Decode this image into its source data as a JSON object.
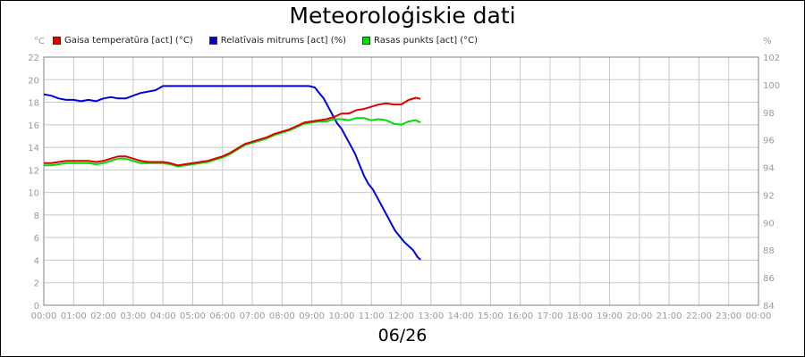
{
  "title": "Meteoroloģiskie dati",
  "date_label": "06/26",
  "units": {
    "left": "°C",
    "right": "%"
  },
  "colors": {
    "temperature": "#e00000",
    "humidity": "#0000dd",
    "dewpoint": "#00dd00"
  },
  "chart_data": {
    "type": "line",
    "title": "Meteoroloģiskie dati",
    "xlabel": "06/26",
    "x_ticks": [
      "00:00",
      "01:00",
      "02:00",
      "03:00",
      "04:00",
      "05:00",
      "06:00",
      "07:00",
      "08:00",
      "09:00",
      "10:00",
      "11:00",
      "12:00",
      "13:00",
      "14:00",
      "15:00",
      "16:00",
      "17:00",
      "18:00",
      "19:00",
      "20:00",
      "21:00",
      "22:00",
      "23:00",
      "00:00"
    ],
    "xlim": [
      0,
      24
    ],
    "y_left": {
      "label": "°C",
      "lim": [
        0,
        22
      ],
      "ticks": [
        "0",
        "2",
        "4",
        "6",
        "8",
        "10",
        "12",
        "14",
        "16",
        "18",
        "20",
        "22"
      ]
    },
    "y_right": {
      "label": "%",
      "lim": [
        84,
        102
      ],
      "ticks": [
        "84",
        "86",
        "88",
        "90",
        "92",
        "94",
        "96",
        "98",
        "100",
        "102"
      ]
    },
    "grid": true,
    "legend_position": "top-left",
    "series": [
      {
        "name": "Gaisa temperatūra [act] (°C)",
        "axis": "left",
        "color": "#e00000",
        "x": [
          0,
          0.25,
          0.5,
          0.75,
          1,
          1.25,
          1.5,
          1.75,
          2,
          2.25,
          2.5,
          2.75,
          3,
          3.25,
          3.5,
          3.75,
          4,
          4.25,
          4.5,
          4.75,
          5,
          5.25,
          5.5,
          5.75,
          6,
          6.25,
          6.5,
          6.75,
          7,
          7.25,
          7.5,
          7.75,
          8,
          8.25,
          8.5,
          8.75,
          9,
          9.25,
          9.5,
          9.75,
          10,
          10.25,
          10.5,
          10.75,
          11,
          11.25,
          11.5,
          11.75,
          12,
          12.25,
          12.5,
          12.65
        ],
        "y": [
          12.6,
          12.6,
          12.7,
          12.8,
          12.8,
          12.8,
          12.8,
          12.7,
          12.8,
          13.0,
          13.2,
          13.2,
          13.0,
          12.8,
          12.7,
          12.7,
          12.7,
          12.6,
          12.4,
          12.5,
          12.6,
          12.7,
          12.8,
          13.0,
          13.2,
          13.5,
          13.9,
          14.3,
          14.5,
          14.7,
          14.9,
          15.2,
          15.4,
          15.6,
          15.9,
          16.2,
          16.3,
          16.4,
          16.5,
          16.7,
          17.0,
          17.0,
          17.3,
          17.4,
          17.6,
          17.8,
          17.9,
          17.8,
          17.8,
          18.2,
          18.4,
          18.3
        ]
      },
      {
        "name": "Relatīvais mitrums [act] (%)",
        "axis": "right",
        "color": "#0000dd",
        "x": [
          0,
          0.25,
          0.5,
          0.75,
          1,
          1.25,
          1.5,
          1.75,
          2,
          2.25,
          2.5,
          2.75,
          3,
          3.25,
          3.5,
          3.75,
          4,
          4.5,
          5,
          5.5,
          6,
          6.5,
          7,
          7.5,
          8,
          8.5,
          8.9,
          9.1,
          9.25,
          9.4,
          9.55,
          9.7,
          9.85,
          10,
          10.15,
          10.3,
          10.45,
          10.6,
          10.75,
          10.9,
          11.05,
          11.2,
          11.35,
          11.5,
          11.65,
          11.8,
          11.95,
          12.1,
          12.25,
          12.4,
          12.55,
          12.65
        ],
        "y": [
          99.3,
          99.2,
          99.0,
          98.9,
          98.9,
          98.8,
          98.9,
          98.8,
          99.0,
          99.1,
          99.0,
          99.0,
          99.2,
          99.4,
          99.5,
          99.6,
          99.9,
          99.9,
          99.9,
          99.9,
          99.9,
          99.9,
          99.9,
          99.9,
          99.9,
          99.9,
          99.9,
          99.8,
          99.4,
          99.0,
          98.4,
          97.8,
          97.2,
          96.8,
          96.2,
          95.6,
          95.0,
          94.2,
          93.4,
          92.8,
          92.4,
          91.8,
          91.2,
          90.6,
          90.0,
          89.4,
          89.0,
          88.6,
          88.3,
          88.0,
          87.5,
          87.3
        ]
      },
      {
        "name": "Rasas punkts [act] (°C)",
        "axis": "left",
        "color": "#00dd00",
        "x": [
          0,
          0.25,
          0.5,
          0.75,
          1,
          1.25,
          1.5,
          1.75,
          2,
          2.25,
          2.5,
          2.75,
          3,
          3.25,
          3.5,
          3.75,
          4,
          4.25,
          4.5,
          4.75,
          5,
          5.25,
          5.5,
          5.75,
          6,
          6.25,
          6.5,
          6.75,
          7,
          7.25,
          7.5,
          7.75,
          8,
          8.25,
          8.5,
          8.75,
          9,
          9.25,
          9.5,
          9.75,
          10,
          10.25,
          10.5,
          10.75,
          11,
          11.25,
          11.5,
          11.75,
          12,
          12.25,
          12.5,
          12.65
        ],
        "y": [
          12.4,
          12.4,
          12.5,
          12.6,
          12.6,
          12.6,
          12.6,
          12.5,
          12.6,
          12.8,
          13.0,
          13.0,
          12.8,
          12.6,
          12.6,
          12.6,
          12.6,
          12.5,
          12.3,
          12.4,
          12.5,
          12.6,
          12.7,
          12.9,
          13.1,
          13.4,
          13.8,
          14.2,
          14.4,
          14.6,
          14.8,
          15.1,
          15.3,
          15.5,
          15.8,
          16.1,
          16.2,
          16.3,
          16.3,
          16.5,
          16.5,
          16.4,
          16.6,
          16.6,
          16.4,
          16.5,
          16.4,
          16.1,
          16.0,
          16.3,
          16.4,
          16.2
        ]
      }
    ]
  }
}
